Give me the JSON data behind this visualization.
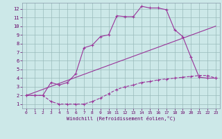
{
  "xlabel": "Windchill (Refroidissement éolien,°C)",
  "bg_color": "#cce8e8",
  "grid_color": "#99bbbb",
  "line_color": "#993399",
  "xlim": [
    -0.5,
    23.5
  ],
  "ylim": [
    0.5,
    12.7
  ],
  "xticks": [
    0,
    1,
    2,
    3,
    4,
    5,
    6,
    7,
    8,
    9,
    10,
    11,
    12,
    13,
    14,
    15,
    16,
    17,
    18,
    19,
    20,
    21,
    22,
    23
  ],
  "yticks": [
    1,
    2,
    3,
    4,
    5,
    6,
    7,
    8,
    9,
    10,
    11,
    12
  ],
  "line1_x": [
    0,
    1,
    2,
    3,
    4,
    5,
    6,
    7,
    8,
    9,
    10,
    11,
    12,
    13,
    14,
    15,
    16,
    17,
    18,
    19,
    20,
    21,
    22,
    23
  ],
  "line1_y": [
    2.0,
    2.0,
    2.0,
    1.3,
    1.0,
    1.0,
    1.0,
    1.0,
    1.3,
    1.7,
    2.2,
    2.7,
    3.0,
    3.2,
    3.5,
    3.6,
    3.8,
    3.9,
    4.0,
    4.1,
    4.2,
    4.3,
    4.3,
    4.0
  ],
  "line2_x": [
    0,
    1,
    2,
    3,
    4,
    5,
    6,
    7,
    8,
    9,
    10,
    11,
    12,
    13,
    14,
    15,
    16,
    17,
    18,
    19,
    20,
    21,
    22,
    23
  ],
  "line2_y": [
    2.0,
    2.0,
    2.0,
    3.5,
    3.2,
    3.5,
    4.5,
    7.5,
    7.8,
    8.8,
    9.0,
    11.2,
    11.1,
    11.1,
    12.3,
    12.1,
    12.1,
    11.9,
    9.6,
    8.8,
    6.4,
    4.1,
    4.0,
    4.0
  ],
  "line3_x": [
    0,
    23
  ],
  "line3_y": [
    2.0,
    10.0
  ]
}
